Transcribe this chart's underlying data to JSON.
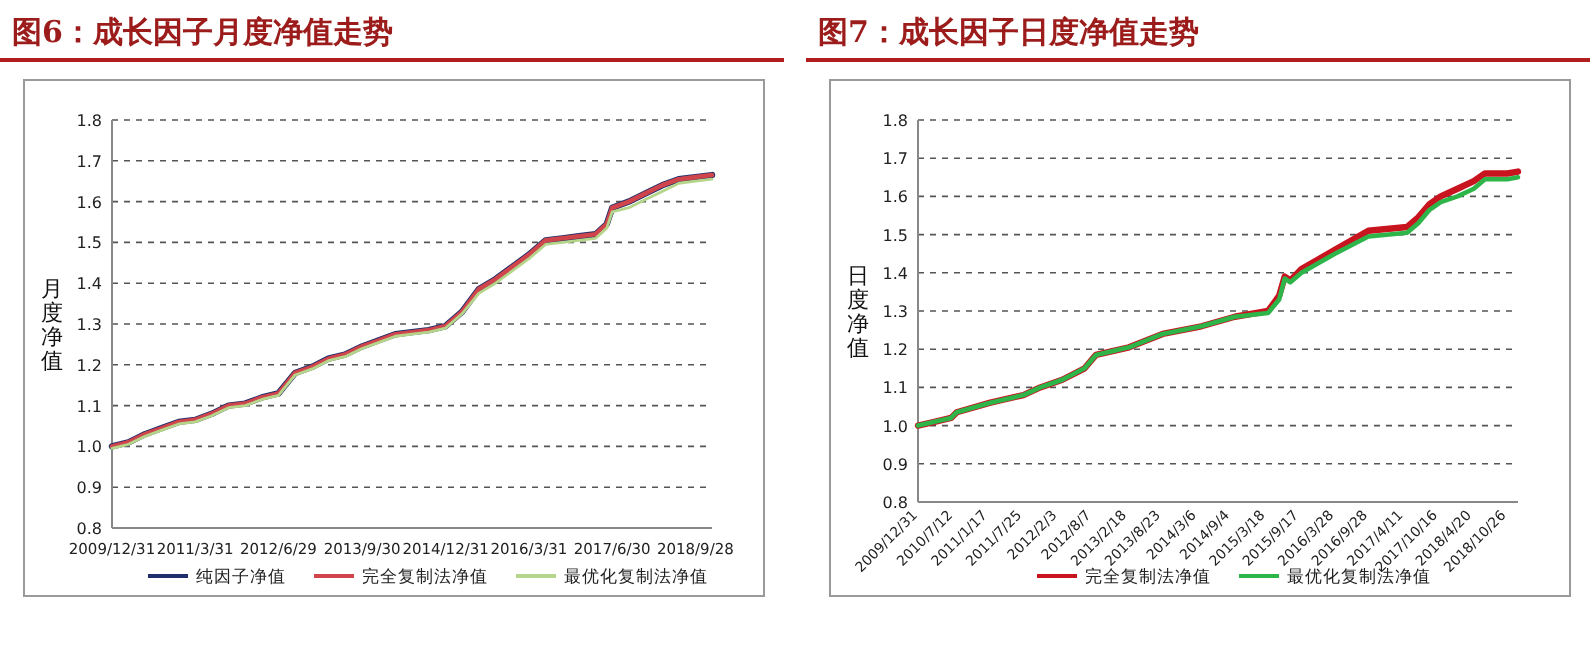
{
  "chart_data": [
    {
      "type": "line",
      "title": "图6：成长因子月度净值走势",
      "ylabel": "月度净值",
      "grid": "y",
      "legend": "bottom",
      "xlim": [
        "2009-12-31",
        "2018-12-28"
      ],
      "ylim": [
        0.8,
        1.8
      ],
      "yticks": [
        {
          "value": 0.8,
          "label": "0.8"
        },
        {
          "value": 0.9,
          "label": "0.9"
        },
        {
          "value": 1.0,
          "label": "1.0"
        },
        {
          "value": 1.1,
          "label": "1.1"
        },
        {
          "value": 1.2,
          "label": "1.2"
        },
        {
          "value": 1.3,
          "label": "1.3"
        },
        {
          "value": 1.4,
          "label": "1.4"
        },
        {
          "value": 1.5,
          "label": "1.5"
        },
        {
          "value": 1.6,
          "label": "1.6"
        },
        {
          "value": 1.7,
          "label": "1.7"
        },
        {
          "value": 1.8,
          "label": "1.8"
        }
      ],
      "xticks": [
        {
          "value": "2009-12-31",
          "label": "2009/12/31"
        },
        {
          "value": "2011-03-31",
          "label": "2011/3/31"
        },
        {
          "value": "2012-06-29",
          "label": "2012/6/29"
        },
        {
          "value": "2013-09-30",
          "label": "2013/9/30"
        },
        {
          "value": "2014-12-31",
          "label": "2014/12/31"
        },
        {
          "value": "2016-03-31",
          "label": "2016/3/31"
        },
        {
          "value": "2017-06-30",
          "label": "2017/6/30"
        },
        {
          "value": "2018-09-28",
          "label": "2018/9/28"
        }
      ],
      "x": [
        "2009-12-31",
        "2010-03-31",
        "2010-06-30",
        "2010-09-30",
        "2010-12-31",
        "2011-03-31",
        "2011-06-30",
        "2011-09-30",
        "2011-12-30",
        "2012-03-30",
        "2012-06-29",
        "2012-09-28",
        "2012-12-31",
        "2013-03-29",
        "2013-06-28",
        "2013-09-30",
        "2013-12-31",
        "2014-03-31",
        "2014-06-30",
        "2014-09-30",
        "2014-12-31",
        "2015-03-31",
        "2015-06-30",
        "2015-09-30",
        "2015-12-31",
        "2016-03-31",
        "2016-06-30",
        "2016-09-30",
        "2016-12-30",
        "2017-03-31",
        "2017-05-31",
        "2017-06-30",
        "2017-09-29",
        "2017-12-29",
        "2018-03-30",
        "2018-06-29",
        "2018-09-28",
        "2018-12-28"
      ],
      "series": [
        {
          "name": "纯因子净值",
          "color": "#1f2f6b",
          "values": [
            1.0,
            1.01,
            1.03,
            1.045,
            1.06,
            1.065,
            1.08,
            1.1,
            1.105,
            1.12,
            1.13,
            1.18,
            1.195,
            1.215,
            1.225,
            1.245,
            1.26,
            1.275,
            1.28,
            1.285,
            1.295,
            1.33,
            1.385,
            1.41,
            1.44,
            1.47,
            1.505,
            1.51,
            1.515,
            1.52,
            1.545,
            1.585,
            1.6,
            1.62,
            1.64,
            1.655,
            1.66,
            1.665
          ]
        },
        {
          "name": "完全复制法净值",
          "color": "#d0454c",
          "values": [
            1.0,
            1.01,
            1.03,
            1.045,
            1.06,
            1.065,
            1.08,
            1.1,
            1.105,
            1.12,
            1.13,
            1.18,
            1.195,
            1.215,
            1.225,
            1.245,
            1.26,
            1.275,
            1.28,
            1.285,
            1.295,
            1.33,
            1.385,
            1.41,
            1.44,
            1.47,
            1.505,
            1.51,
            1.515,
            1.52,
            1.545,
            1.585,
            1.6,
            1.62,
            1.64,
            1.655,
            1.66,
            1.665
          ]
        },
        {
          "name": "最优化复制法净值",
          "color": "#b5d58a",
          "values": [
            0.995,
            1.005,
            1.025,
            1.04,
            1.055,
            1.06,
            1.075,
            1.095,
            1.1,
            1.115,
            1.125,
            1.175,
            1.19,
            1.21,
            1.22,
            1.24,
            1.255,
            1.27,
            1.275,
            1.28,
            1.29,
            1.325,
            1.375,
            1.4,
            1.43,
            1.46,
            1.495,
            1.5,
            1.505,
            1.51,
            1.535,
            1.575,
            1.585,
            1.605,
            1.625,
            1.645,
            1.65,
            1.655
          ]
        }
      ]
    },
    {
      "type": "line",
      "title": "图7：成长因子日度净值走势",
      "ylabel": "日度净值",
      "grid": "y",
      "legend": "bottom",
      "xlim": [
        "2009-12-31",
        "2018-12-28"
      ],
      "ylim": [
        0.8,
        1.8
      ],
      "yticks": [
        {
          "value": 0.8,
          "label": "0.8"
        },
        {
          "value": 0.9,
          "label": "0.9"
        },
        {
          "value": 1.0,
          "label": "1.0"
        },
        {
          "value": 1.1,
          "label": "1.1"
        },
        {
          "value": 1.2,
          "label": "1.2"
        },
        {
          "value": 1.3,
          "label": "1.3"
        },
        {
          "value": 1.4,
          "label": "1.4"
        },
        {
          "value": 1.5,
          "label": "1.5"
        },
        {
          "value": 1.6,
          "label": "1.6"
        },
        {
          "value": 1.7,
          "label": "1.7"
        },
        {
          "value": 1.8,
          "label": "1.8"
        }
      ],
      "xticks": [
        {
          "value": "2009-12-31",
          "label": "2009/12/31"
        },
        {
          "value": "2010-07-12",
          "label": "2010/7/12"
        },
        {
          "value": "2011-01-17",
          "label": "2011/1/17"
        },
        {
          "value": "2011-07-25",
          "label": "2011/7/25"
        },
        {
          "value": "2012-02-03",
          "label": "2012/2/3"
        },
        {
          "value": "2012-08-07",
          "label": "2012/8/7"
        },
        {
          "value": "2013-02-18",
          "label": "2013/2/18"
        },
        {
          "value": "2013-08-23",
          "label": "2013/8/23"
        },
        {
          "value": "2014-03-06",
          "label": "2014/3/6"
        },
        {
          "value": "2014-09-04",
          "label": "2014/9/4"
        },
        {
          "value": "2015-03-18",
          "label": "2015/3/18"
        },
        {
          "value": "2015-09-17",
          "label": "2015/9/17"
        },
        {
          "value": "2016-03-28",
          "label": "2016/3/28"
        },
        {
          "value": "2016-09-28",
          "label": "2016/9/28"
        },
        {
          "value": "2017-04-11",
          "label": "2017/4/11"
        },
        {
          "value": "2017-10-16",
          "label": "2017/10/16"
        },
        {
          "value": "2018-04-20",
          "label": "2018/4/20"
        },
        {
          "value": "2018-10-26",
          "label": "2018/10/26"
        }
      ],
      "x": [
        "2009-12-31",
        "2010-03-31",
        "2010-06-30",
        "2010-07-31",
        "2011-01-31",
        "2011-07-31",
        "2011-10-31",
        "2012-02-29",
        "2012-06-30",
        "2012-08-31",
        "2013-02-28",
        "2013-08-31",
        "2014-03-31",
        "2014-09-30",
        "2015-03-31",
        "2015-05-31",
        "2015-06-30",
        "2015-07-31",
        "2015-09-30",
        "2016-03-31",
        "2016-09-30",
        "2017-04-30",
        "2017-06-30",
        "2017-08-31",
        "2017-10-31",
        "2018-01-31",
        "2018-04-30",
        "2018-06-30",
        "2018-10-31",
        "2018-12-28"
      ],
      "series": [
        {
          "name": "完全复制法净值",
          "color": "#c8141e",
          "values": [
            1.0,
            1.01,
            1.02,
            1.035,
            1.06,
            1.08,
            1.1,
            1.12,
            1.15,
            1.185,
            1.205,
            1.24,
            1.26,
            1.285,
            1.3,
            1.34,
            1.39,
            1.38,
            1.41,
            1.46,
            1.51,
            1.52,
            1.545,
            1.58,
            1.6,
            1.62,
            1.64,
            1.66,
            1.66,
            1.665
          ]
        },
        {
          "name": "最优化复制法净值",
          "color": "#2db54a",
          "values": [
            1.0,
            1.01,
            1.02,
            1.035,
            1.06,
            1.08,
            1.1,
            1.12,
            1.15,
            1.185,
            1.205,
            1.24,
            1.26,
            1.285,
            1.295,
            1.33,
            1.385,
            1.375,
            1.4,
            1.45,
            1.495,
            1.505,
            1.53,
            1.565,
            1.585,
            1.6,
            1.62,
            1.645,
            1.645,
            1.65
          ]
        }
      ]
    }
  ]
}
